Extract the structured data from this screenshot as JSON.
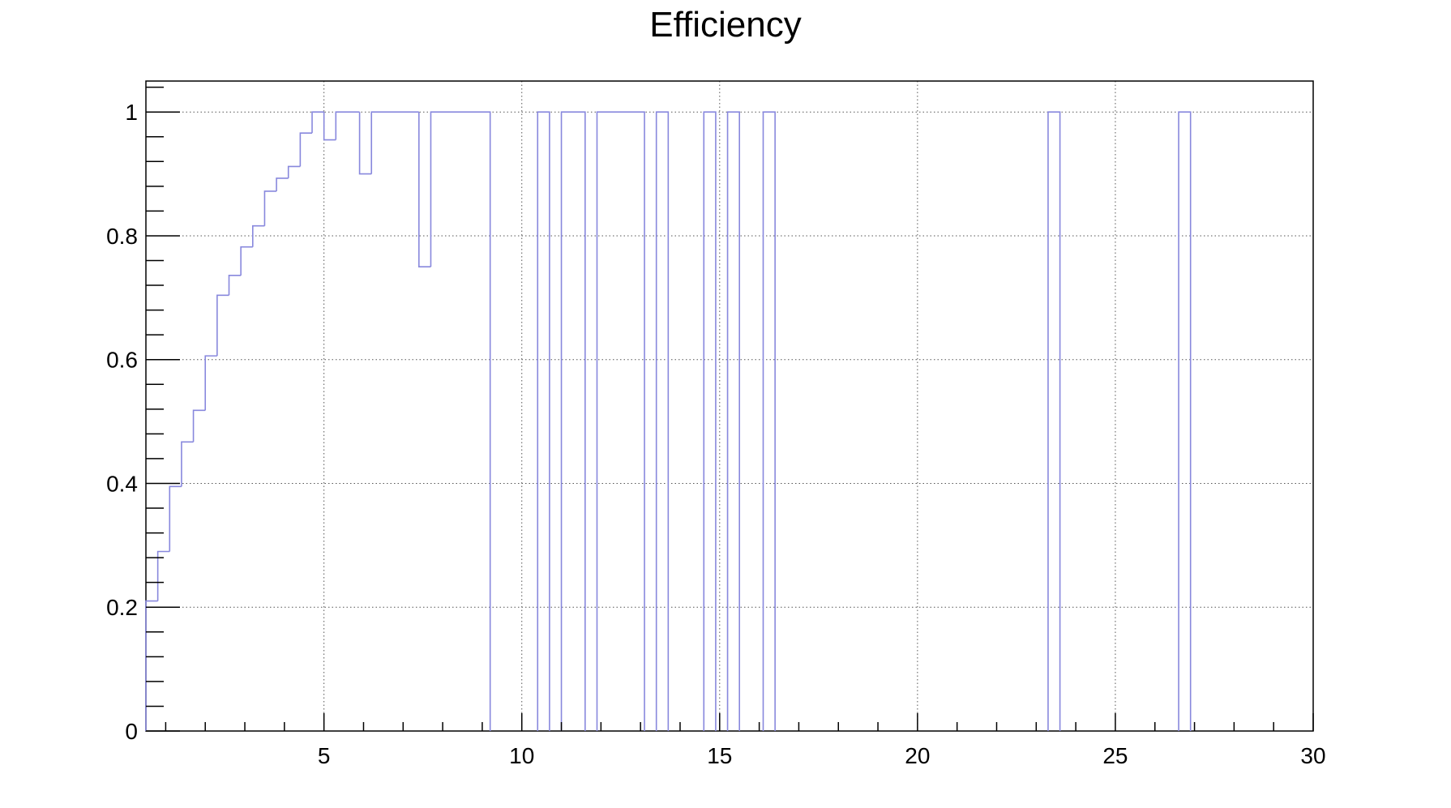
{
  "chart_data": {
    "type": "histogram-step",
    "title": "Efficiency",
    "xlabel": "",
    "ylabel": "",
    "xlim": [
      0.5,
      30
    ],
    "ylim": [
      0,
      1.05
    ],
    "x_ticks": [
      5,
      10,
      15,
      20,
      25,
      30
    ],
    "x_tick_labels": [
      "5",
      "10",
      "15",
      "20",
      "25",
      "30"
    ],
    "y_ticks": [
      0,
      0.2,
      0.4,
      0.6,
      0.8,
      1
    ],
    "y_tick_labels": [
      "0",
      "0.2",
      "0.4",
      "0.6",
      "0.8",
      "1"
    ],
    "grid": true,
    "bin_width": 0.3,
    "series": [
      {
        "color": "#8888dd",
        "bins": [
          {
            "x0": 0.5,
            "x1": 0.8,
            "y": 0.21
          },
          {
            "x0": 0.8,
            "x1": 1.1,
            "y": 0.29
          },
          {
            "x0": 1.1,
            "x1": 1.4,
            "y": 0.395
          },
          {
            "x0": 1.4,
            "x1": 1.7,
            "y": 0.467
          },
          {
            "x0": 1.7,
            "x1": 2.0,
            "y": 0.518
          },
          {
            "x0": 2.0,
            "x1": 2.3,
            "y": 0.606
          },
          {
            "x0": 2.3,
            "x1": 2.6,
            "y": 0.704
          },
          {
            "x0": 2.6,
            "x1": 2.9,
            "y": 0.736
          },
          {
            "x0": 2.9,
            "x1": 3.2,
            "y": 0.782
          },
          {
            "x0": 3.2,
            "x1": 3.5,
            "y": 0.816
          },
          {
            "x0": 3.5,
            "x1": 3.8,
            "y": 0.872
          },
          {
            "x0": 3.8,
            "x1": 4.1,
            "y": 0.893
          },
          {
            "x0": 4.1,
            "x1": 4.4,
            "y": 0.912
          },
          {
            "x0": 4.4,
            "x1": 4.7,
            "y": 0.966
          },
          {
            "x0": 4.7,
            "x1": 5.0,
            "y": 1.0
          },
          {
            "x0": 5.0,
            "x1": 5.3,
            "y": 0.955
          },
          {
            "x0": 5.3,
            "x1": 5.9,
            "y": 1.0
          },
          {
            "x0": 5.9,
            "x1": 6.2,
            "y": 0.9
          },
          {
            "x0": 6.2,
            "x1": 7.4,
            "y": 1.0
          },
          {
            "x0": 7.4,
            "x1": 7.7,
            "y": 0.75
          },
          {
            "x0": 7.7,
            "x1": 9.2,
            "y": 1.0
          },
          {
            "x0": 10.4,
            "x1": 10.7,
            "y": 1.0
          },
          {
            "x0": 11.0,
            "x1": 11.6,
            "y": 1.0
          },
          {
            "x0": 11.9,
            "x1": 13.1,
            "y": 1.0
          },
          {
            "x0": 13.4,
            "x1": 13.7,
            "y": 1.0
          },
          {
            "x0": 14.6,
            "x1": 14.9,
            "y": 1.0
          },
          {
            "x0": 15.2,
            "x1": 15.5,
            "y": 1.0
          },
          {
            "x0": 16.1,
            "x1": 16.4,
            "y": 1.0
          },
          {
            "x0": 23.3,
            "x1": 23.6,
            "y": 1.0
          },
          {
            "x0": 26.6,
            "x1": 26.9,
            "y": 1.0
          }
        ]
      }
    ]
  }
}
